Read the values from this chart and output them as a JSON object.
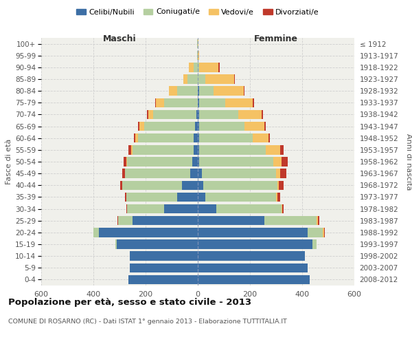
{
  "age_groups": [
    "0-4",
    "5-9",
    "10-14",
    "15-19",
    "20-24",
    "25-29",
    "30-34",
    "35-39",
    "40-44",
    "45-49",
    "50-54",
    "55-59",
    "60-64",
    "65-69",
    "70-74",
    "75-79",
    "80-84",
    "85-89",
    "90-94",
    "95-99",
    "100+"
  ],
  "birth_years": [
    "2008-2012",
    "2003-2007",
    "1998-2002",
    "1993-1997",
    "1988-1992",
    "1983-1987",
    "1978-1982",
    "1973-1977",
    "1968-1972",
    "1963-1967",
    "1958-1962",
    "1953-1957",
    "1948-1952",
    "1943-1947",
    "1938-1942",
    "1933-1937",
    "1928-1932",
    "1923-1927",
    "1918-1922",
    "1913-1917",
    "≤ 1912"
  ],
  "male": {
    "celibe": [
      265,
      260,
      260,
      310,
      380,
      250,
      130,
      80,
      60,
      30,
      20,
      15,
      15,
      10,
      5,
      0,
      0,
      0,
      0,
      0,
      0
    ],
    "coniugato": [
      0,
      0,
      0,
      5,
      20,
      55,
      140,
      195,
      230,
      250,
      250,
      235,
      215,
      195,
      165,
      130,
      80,
      40,
      15,
      2,
      2
    ],
    "vedovo": [
      0,
      0,
      0,
      0,
      0,
      0,
      0,
      0,
      0,
      0,
      3,
      5,
      10,
      20,
      20,
      30,
      30,
      15,
      20,
      0,
      0
    ],
    "divorziato": [
      0,
      0,
      0,
      0,
      0,
      3,
      3,
      5,
      8,
      10,
      10,
      10,
      5,
      5,
      5,
      3,
      0,
      0,
      0,
      0,
      0
    ]
  },
  "female": {
    "nubile": [
      430,
      420,
      410,
      440,
      420,
      255,
      70,
      30,
      20,
      15,
      5,
      5,
      5,
      5,
      5,
      5,
      5,
      0,
      0,
      0,
      0
    ],
    "coniugata": [
      0,
      0,
      0,
      15,
      60,
      200,
      250,
      270,
      285,
      285,
      285,
      255,
      205,
      175,
      150,
      100,
      55,
      30,
      5,
      0,
      0
    ],
    "vedova": [
      0,
      0,
      0,
      0,
      3,
      5,
      3,
      5,
      5,
      15,
      30,
      55,
      60,
      75,
      90,
      105,
      115,
      110,
      75,
      5,
      2
    ],
    "divorziata": [
      0,
      0,
      0,
      0,
      3,
      5,
      5,
      10,
      20,
      25,
      25,
      15,
      5,
      5,
      5,
      5,
      3,
      3,
      3,
      0,
      0
    ]
  },
  "colors": {
    "celibe": "#3d6fa5",
    "coniugato": "#b5cfa0",
    "vedovo": "#f5c264",
    "divorziato": "#c0392b"
  },
  "title": "Popolazione per età, sesso e stato civile - 2013",
  "subtitle": "COMUNE DI ROSARNO (RC) - Dati ISTAT 1° gennaio 2013 - Elaborazione TUTTITALIA.IT",
  "xlabel_left": "Maschi",
  "xlabel_right": "Femmine",
  "ylabel_left": "Fasce di età",
  "ylabel_right": "Anni di nascita",
  "xlim": 600,
  "legend_labels": [
    "Celibi/Nubili",
    "Coniugati/e",
    "Vedovi/e",
    "Divorziati/e"
  ],
  "background_color": "#ffffff",
  "plot_bg": "#f0f0eb",
  "grid_color": "#cccccc"
}
